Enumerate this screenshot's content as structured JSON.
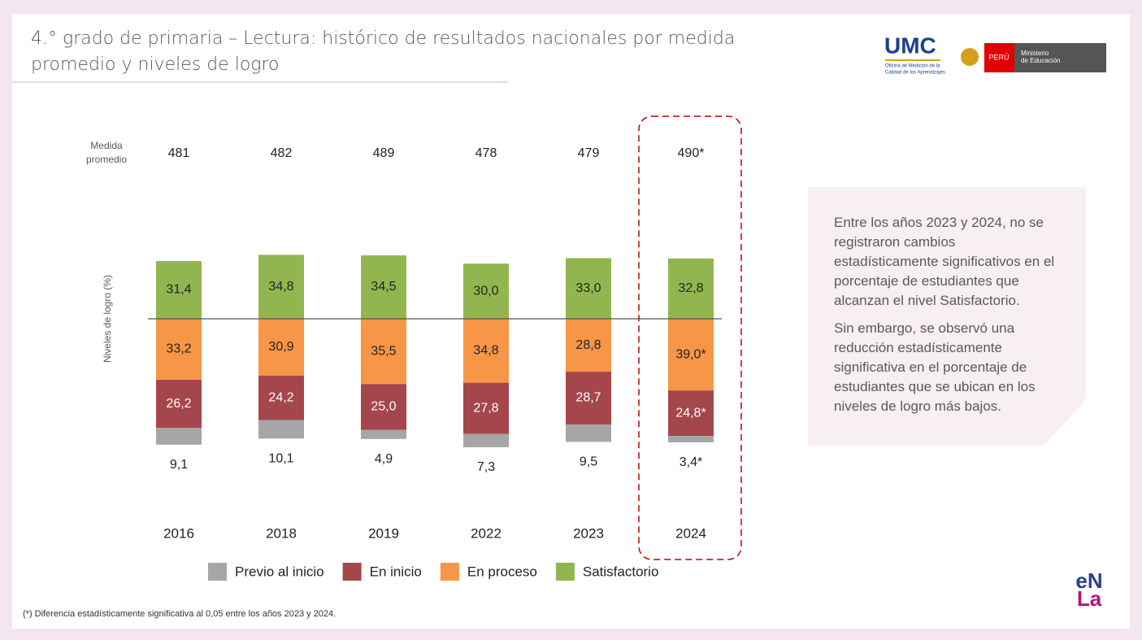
{
  "header": {
    "title_lines": [
      "4.° grado de primaria – Lectura: histórico de resultados nacionales por medida",
      "promedio y niveles de logro"
    ],
    "logo_umc": "UMC",
    "logo_umc_sub": [
      "Oficina de Medición de la",
      "Calidad de los Aprendizajes"
    ],
    "logo_peru": "PERÚ",
    "logo_minedu": [
      "Ministerio",
      "de Educación"
    ]
  },
  "chart_data": {
    "type": "diverging_stacked_bar",
    "y_label": "Niveles de logro (%)",
    "categories": [
      "2016",
      "2018",
      "2019",
      "2022",
      "2023",
      "2024"
    ],
    "mean_score": {
      "label": [
        "Medida",
        "promedio"
      ],
      "values": [
        481,
        482,
        489,
        478,
        479,
        490
      ],
      "value_labels": [
        "481",
        "482",
        "489",
        "478",
        "479",
        "490*"
      ]
    },
    "series": [
      {
        "name": "Previo al inicio",
        "color": "#a6a6a6",
        "values": [
          9.1,
          10.1,
          4.9,
          7.3,
          9.5,
          3.4
        ],
        "value_labels": [
          "9,1",
          "10,1",
          "4,9",
          "7,3",
          "9,5",
          "3,4*"
        ]
      },
      {
        "name": "En inicio",
        "color": "#a5464c",
        "values": [
          26.2,
          24.2,
          25.0,
          27.8,
          28.7,
          24.8
        ],
        "value_labels": [
          "26,2",
          "24,2",
          "25,0",
          "27,8",
          "28,7",
          "24,8*"
        ]
      },
      {
        "name": "En proceso",
        "color": "#f79646",
        "values": [
          33.2,
          30.9,
          35.5,
          34.8,
          28.8,
          39.0
        ],
        "value_labels": [
          "33,2",
          "30,9",
          "35,5",
          "34,8",
          "28,8",
          "39,0*"
        ]
      },
      {
        "name": "Satisfactorio",
        "color": "#92b64f",
        "values": [
          31.4,
          34.8,
          34.5,
          30.0,
          33.0,
          32.8
        ],
        "value_labels": [
          "31,4",
          "34,8",
          "34,5",
          "30,0",
          "33,0",
          "32,8"
        ]
      }
    ],
    "highlight_color": "#c00000",
    "footnote": "(*) Diferencia estadísticamente significativa al 0,05 entre los años 2023 y 2024."
  },
  "sidebar": {
    "paragraphs": [
      "Entre los años 2023 y 2024, no se registraron cambios estadísticamente significativos en el porcentaje de estudiantes que alcanzan el nivel Satisfactorio.",
      "Sin embargo, se observó una reducción estadísticamente significativa en el porcentaje de estudiantes que se ubican en los niveles de logro más bajos."
    ]
  },
  "footer": {
    "logo_top": "eN",
    "logo_bottom": "La"
  }
}
